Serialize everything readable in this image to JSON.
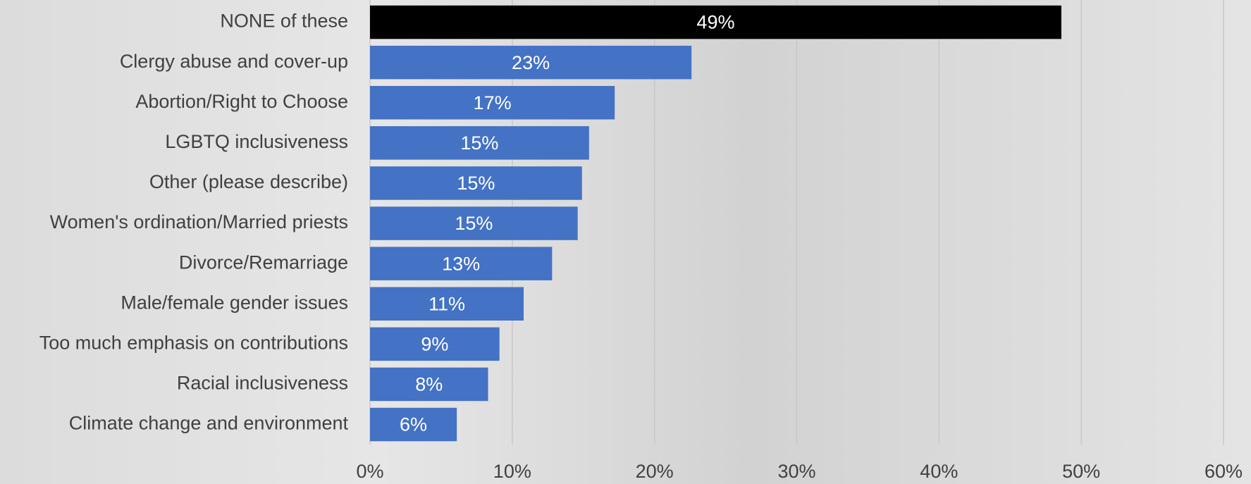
{
  "chart_data": {
    "type": "bar",
    "orientation": "horizontal",
    "categories": [
      "NONE of these",
      "Clergy abuse and cover-up",
      "Abortion/Right to Choose",
      "LGBTQ inclusiveness",
      "Other (please describe)",
      "Women's ordination/Married priests",
      "Divorce/Remarriage",
      "Male/female gender issues",
      "Too much emphasis on contributions",
      "Racial inclusiveness",
      "Climate change and environment"
    ],
    "values": [
      48.6,
      22.6,
      17.2,
      15.4,
      14.9,
      14.6,
      12.8,
      10.8,
      9.1,
      8.3,
      6.1
    ],
    "value_labels": [
      "49%",
      "23%",
      "17%",
      "15%",
      "15%",
      "15%",
      "13%",
      "11%",
      "9%",
      "8%",
      "6%"
    ],
    "colors": [
      "#000000",
      "#4472c4",
      "#4472c4",
      "#4472c4",
      "#4472c4",
      "#4472c4",
      "#4472c4",
      "#4472c4",
      "#4472c4",
      "#4472c4",
      "#4472c4"
    ],
    "xlim": [
      0,
      60
    ],
    "xticks": [
      {
        "value": 0,
        "label": "0%"
      },
      {
        "value": 10,
        "label": "10%"
      },
      {
        "value": 20,
        "label": "20%"
      },
      {
        "value": 30,
        "label": "30%"
      },
      {
        "value": 40,
        "label": "40%"
      },
      {
        "value": 50,
        "label": "50%"
      },
      {
        "value": 60,
        "label": "60%"
      }
    ],
    "grid": true
  }
}
